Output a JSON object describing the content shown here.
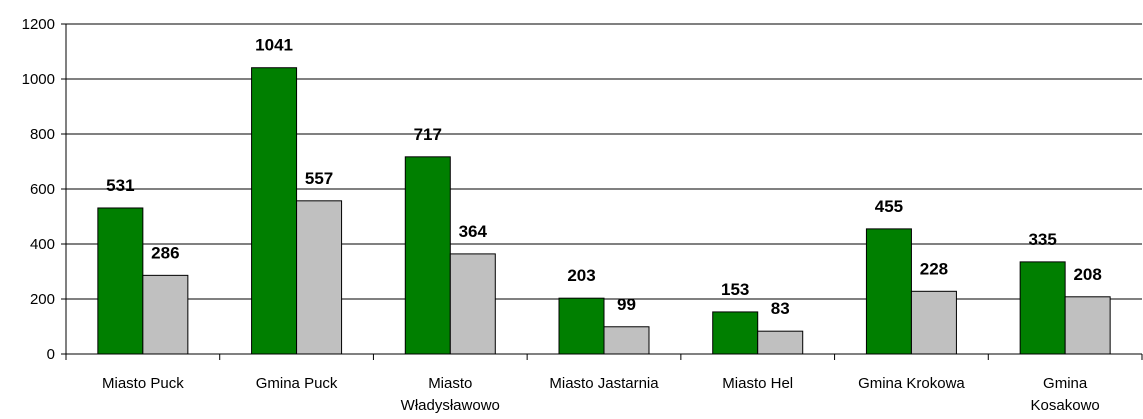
{
  "chart_data": {
    "type": "bar",
    "categories": [
      "Miasto Puck",
      "Gmina Puck",
      "Miasto\nWładysławowo",
      "Miasto Jastarnia",
      "Miasto Hel",
      "Gmina Krokowa",
      "Gmina\nKosakowo"
    ],
    "series": [
      {
        "color": "#007f00",
        "values": [
          531,
          1041,
          717,
          203,
          153,
          455,
          335
        ]
      },
      {
        "color": "#c0c0c0",
        "values": [
          286,
          557,
          364,
          99,
          83,
          228,
          208
        ]
      }
    ],
    "ylim": [
      0,
      1200
    ],
    "yticks": [
      0,
      200,
      400,
      600,
      800,
      1000,
      1200
    ],
    "grid": true
  }
}
